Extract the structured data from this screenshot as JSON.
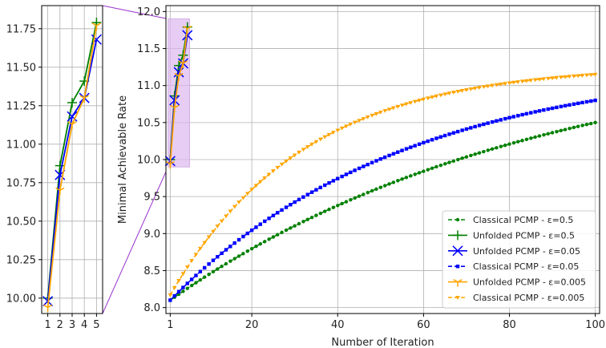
{
  "chart_data": [
    {
      "type": "line",
      "role": "inset-zoom",
      "xlim": [
        0.5,
        5.5
      ],
      "ylim": [
        9.9,
        11.9
      ],
      "xticks": [
        1,
        2,
        3,
        4,
        5
      ],
      "yticks": [
        10.0,
        10.25,
        10.5,
        10.75,
        11.0,
        11.25,
        11.5,
        11.75
      ],
      "ytick_labels": [
        "10.00",
        "10.25",
        "10.50",
        "10.75",
        "11.00",
        "11.25",
        "11.50",
        "11.75"
      ],
      "grid": true,
      "series": [
        {
          "name": "Unfolded PCMP - ε=0.5",
          "color": "#008000",
          "marker": "+",
          "x": [
            1,
            2,
            3,
            4,
            5
          ],
          "y": [
            10.0,
            10.86,
            11.27,
            11.41,
            11.79
          ]
        },
        {
          "name": "Unfolded PCMP - ε=0.05",
          "color": "#0000ff",
          "marker": "x",
          "x": [
            1,
            2,
            3,
            4,
            5
          ],
          "y": [
            9.98,
            10.8,
            11.18,
            11.3,
            11.68
          ]
        },
        {
          "name": "Unfolded PCMP - ε=0.005",
          "color": "#ffa500",
          "marker": "1",
          "x": [
            1,
            2,
            3,
            4,
            5
          ],
          "y": [
            9.94,
            10.7,
            11.13,
            11.3,
            11.77
          ]
        }
      ]
    },
    {
      "type": "line",
      "role": "main",
      "xlabel": "Number of Iteration",
      "ylabel": "Minimal Achievable Rate",
      "xlim": [
        0,
        101
      ],
      "ylim": [
        7.92,
        12.08
      ],
      "xticks": [
        1,
        20,
        40,
        60,
        80,
        100
      ],
      "yticks": [
        8.0,
        8.5,
        9.0,
        9.5,
        10.0,
        10.5,
        11.0,
        11.5,
        12.0
      ],
      "ytick_labels": [
        "8.0",
        "8.5",
        "9.0",
        "9.5",
        "10.0",
        "10.5",
        "11.0",
        "11.5",
        "12.0"
      ],
      "grid": true,
      "legend_position": "lower-right",
      "zoom_region": {
        "x": [
          0.5,
          5.5
        ],
        "y": [
          9.9,
          11.9
        ]
      },
      "series": [
        {
          "name": "Classical PCMP - ε=0.5",
          "label_prefix": "Classical PCMP - ",
          "label_param": "ε=0.5",
          "color": "#008000",
          "style": "dashed",
          "marker": "dot",
          "x_range": [
            1,
            100
          ],
          "start": 8.1,
          "end": 10.5,
          "shape": 1.15
        },
        {
          "name": "Unfolded PCMP - ε=0.5",
          "label_prefix": "Unfolded PCMP - ",
          "label_param": "ε=0.5",
          "color": "#008000",
          "style": "solid",
          "marker": "+",
          "x": [
            1,
            2,
            3,
            4,
            5
          ],
          "y": [
            10.0,
            10.86,
            11.27,
            11.41,
            11.79
          ]
        },
        {
          "name": "Unfolded PCMP - ε=0.05",
          "label_prefix": "Unfolded PCMP - ",
          "label_param": "ε=0.05",
          "color": "#0000ff",
          "style": "solid",
          "marker": "x",
          "x": [
            1,
            2,
            3,
            4,
            5
          ],
          "y": [
            9.98,
            10.8,
            11.18,
            11.3,
            11.68
          ]
        },
        {
          "name": "Classical PCMP - ε=0.05",
          "label_prefix": "Classical PCMP - ",
          "label_param": "ε=0.05",
          "color": "#0000ff",
          "style": "dashed",
          "marker": "square",
          "x_range": [
            1,
            100
          ],
          "start": 8.1,
          "end": 10.8,
          "shape": 1.8
        },
        {
          "name": "Unfolded PCMP - ε=0.005",
          "label_prefix": "Unfolded PCMP - ",
          "label_param": "ε=0.005",
          "color": "#ffa500",
          "style": "solid",
          "marker": "1",
          "x": [
            1,
            2,
            3,
            4,
            5
          ],
          "y": [
            9.94,
            10.7,
            11.13,
            11.3,
            11.77
          ]
        },
        {
          "name": "Classical PCMP - ε=0.005",
          "label_prefix": "Classical PCMP - ",
          "label_param": "ε=0.005",
          "color": "#ffa500",
          "style": "dashed",
          "marker": "tri-down",
          "x_range": [
            1,
            100
          ],
          "start": 8.17,
          "end": 11.15,
          "shape": 3.2
        }
      ]
    }
  ]
}
